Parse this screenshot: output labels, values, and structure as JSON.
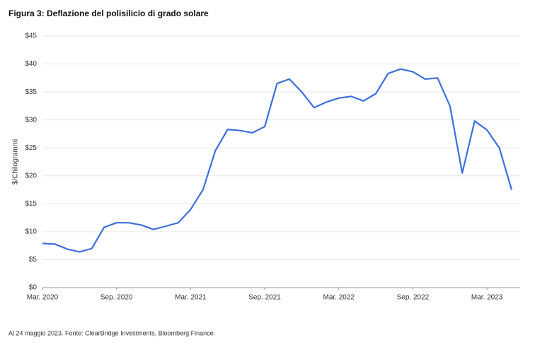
{
  "chart_data": {
    "type": "line",
    "title": "Figura 3: Deflazione del polisilicio di grado solare",
    "y_label": "$/Chilogrammi",
    "note": "Al 24 maggio 2023. Fonte: ClearBridge Investments, Bloomberg Finance.",
    "x": [
      "2020-03",
      "2020-04",
      "2020-05",
      "2020-06",
      "2020-07",
      "2020-08",
      "2020-09",
      "2020-10",
      "2020-11",
      "2020-12",
      "2021-01",
      "2021-02",
      "2021-03",
      "2021-04",
      "2021-05",
      "2021-06",
      "2021-07",
      "2021-08",
      "2021-09",
      "2021-10",
      "2021-11",
      "2021-12",
      "2022-01",
      "2022-02",
      "2022-03",
      "2022-04",
      "2022-05",
      "2022-06",
      "2022-07",
      "2022-08",
      "2022-09",
      "2022-10",
      "2022-11",
      "2022-12",
      "2023-01",
      "2023-02",
      "2023-03",
      "2023-04",
      "2023-05"
    ],
    "series": [
      {
        "name": "Polisilicio",
        "color": "#3b6fde",
        "values": [
          7.9,
          7.8,
          6.9,
          6.4,
          7.0,
          10.8,
          11.6,
          11.6,
          11.2,
          10.4,
          11.0,
          11.6,
          14.0,
          17.5,
          24.5,
          28.3,
          28.1,
          27.7,
          28.8,
          36.5,
          37.3,
          35.0,
          32.2,
          33.2,
          33.9,
          34.2,
          33.4,
          34.7,
          38.3,
          39.1,
          38.6,
          37.3,
          37.5,
          32.5,
          20.5,
          29.8,
          28.2,
          25.0,
          17.5
        ]
      }
    ],
    "xlim": [
      "2020-03",
      "2023-05"
    ],
    "xticks": [
      {
        "value": "2020-03",
        "label": "Mar. 2020"
      },
      {
        "value": "2020-09",
        "label": "Sep. 2020"
      },
      {
        "value": "2021-03",
        "label": "Mar. 2021"
      },
      {
        "value": "2021-09",
        "label": "Sep. 2021"
      },
      {
        "value": "2022-03",
        "label": "Mar. 2022"
      },
      {
        "value": "2022-09",
        "label": "Sep. 2022"
      },
      {
        "value": "2023-03",
        "label": "Mar. 2023"
      }
    ],
    "ylim": [
      0,
      45
    ],
    "yticks": [
      {
        "value": 0,
        "label": "$0"
      },
      {
        "value": 5,
        "label": "$5"
      },
      {
        "value": 10,
        "label": "$10"
      },
      {
        "value": 15,
        "label": "$15"
      },
      {
        "value": 20,
        "label": "$20"
      },
      {
        "value": 25,
        "label": "$25"
      },
      {
        "value": 30,
        "label": "$30"
      },
      {
        "value": 35,
        "label": "$35"
      },
      {
        "value": 40,
        "label": "$40"
      },
      {
        "value": 45,
        "label": "$45"
      }
    ],
    "grid": true
  }
}
